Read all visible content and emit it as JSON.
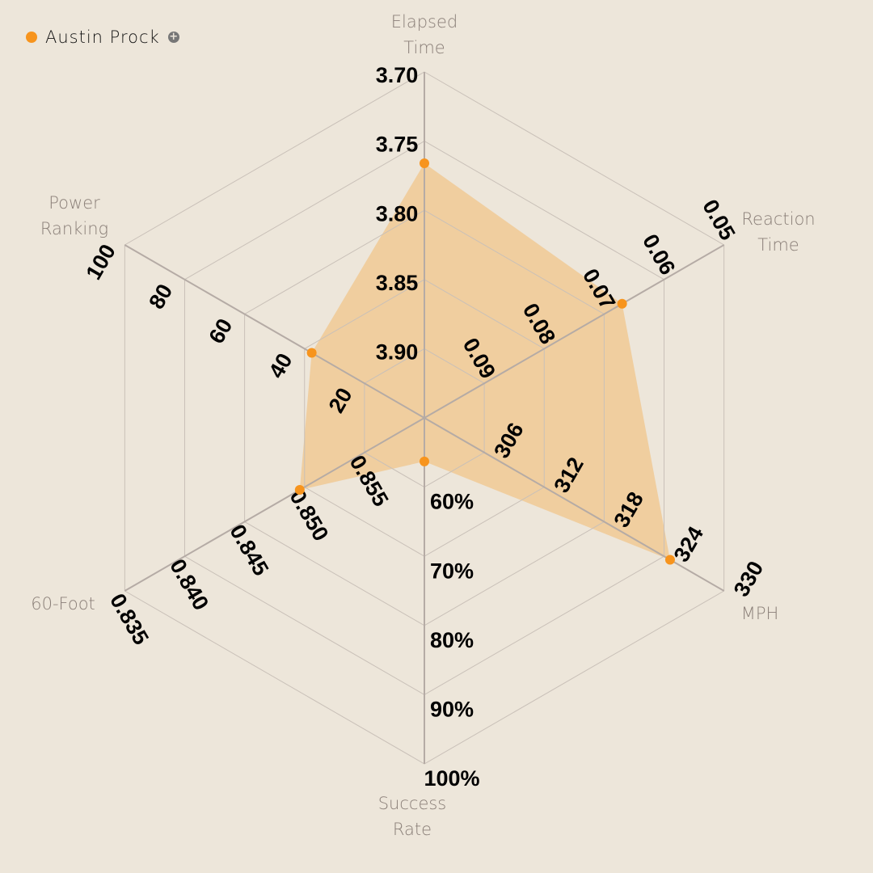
{
  "legend": {
    "name": "Austin Prock",
    "color": "#f7941d",
    "add_icon": "plus-circle-icon"
  },
  "chart_data": {
    "type": "radar",
    "series": [
      {
        "name": "Austin Prock",
        "values": [
          3.766,
          0.067,
          324.6,
          56.3,
          0.8496,
          37.6
        ]
      }
    ],
    "colors": {
      "fill": "#f0c994",
      "point": "#f7941d",
      "grid": "#c9c0b8",
      "axis": "#b5aba5"
    },
    "rings": 5,
    "axes": [
      {
        "title": [
          "Elapsed",
          "Time"
        ],
        "center": 3.95,
        "outer": 3.7,
        "ticks": [
          "3.90",
          "3.85",
          "3.80",
          "3.75",
          "3.70"
        ]
      },
      {
        "title": [
          "Reaction",
          "Time"
        ],
        "center": 0.1,
        "outer": 0.05,
        "ticks": [
          "0.09",
          "0.08",
          "0.07",
          "0.06",
          "0.05"
        ]
      },
      {
        "title": [
          "MPH"
        ],
        "center": 300,
        "outer": 330,
        "ticks": [
          "306",
          "312",
          "318",
          "324",
          "330"
        ]
      },
      {
        "title": [
          "Success",
          "Rate"
        ],
        "center": 50,
        "outer": 100,
        "ticks": [
          "60%",
          "70%",
          "80%",
          "90%",
          "100%"
        ]
      },
      {
        "title": [
          "60-Foot"
        ],
        "center": 0.86,
        "outer": 0.835,
        "ticks": [
          "0.855",
          "0.850",
          "0.845",
          "0.840",
          "0.835"
        ]
      },
      {
        "title": [
          "Power",
          "Ranking"
        ],
        "center": 0,
        "outer": 100,
        "ticks": [
          "20",
          "40",
          "60",
          "80",
          "100"
        ]
      }
    ]
  }
}
